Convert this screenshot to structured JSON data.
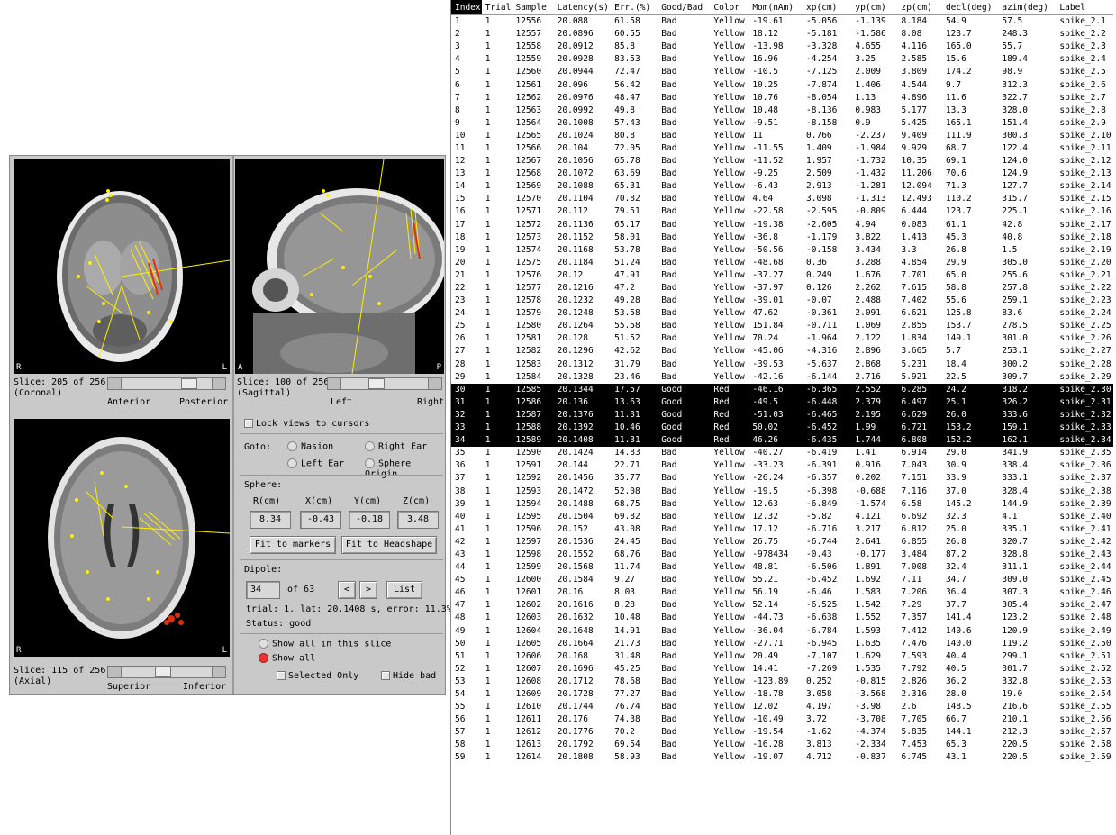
{
  "views": {
    "coronal": {
      "left_label": "R",
      "right_label": "L",
      "slice": "Slice: 205 of 256",
      "view_name": "(Coronal)",
      "scale_left": "Anterior",
      "scale_right": "Posterior",
      "slider_level": 0.8
    },
    "sagittal": {
      "left_label": "A",
      "right_label": "P",
      "slice": "Slice: 100 of 256",
      "view_name": "(Sagittal)",
      "scale_left": "Left",
      "scale_right": "Right",
      "slider_level": 0.39
    },
    "axial": {
      "left_label": "R",
      "right_label": "L",
      "slice": "Slice: 115 of 256",
      "view_name": "(Axial)",
      "scale_left": "Superior",
      "scale_right": "Inferior",
      "slider_level": 0.45
    }
  },
  "controls": {
    "lock_views": "Lock views to cursors",
    "goto_label": "Goto:",
    "goto_options": [
      "Nasion",
      "Right Ear",
      "Left Ear",
      "Sphere Origin"
    ],
    "sphere_label": "Sphere:",
    "sphere_headers": [
      "R(cm)",
      "X(cm)",
      "Y(cm)",
      "Z(cm)"
    ],
    "sphere_values": [
      "8.34",
      "-0.43",
      "-0.18",
      "3.48"
    ],
    "fit_markers": "Fit to markers",
    "fit_headshape": "Fit to Headshape",
    "dipole_label": "Dipole:",
    "dipole_index": "34",
    "dipole_of": "of 63",
    "prev": "<",
    "next": ">",
    "list_button": "List",
    "trial_info": "trial: 1. lat: 20.1408 s, error: 11.3%",
    "status": "Status: good",
    "show_slice": "Show all in this slice",
    "show_all": "Show all",
    "selected_only": "Selected Only",
    "hide_bad": "Hide bad"
  },
  "table": {
    "columns": [
      "Index",
      "Trial",
      "Sample",
      "Latency(s)",
      "Err.(%)",
      "Good/Bad",
      "Color",
      "Mom(nAm)",
      "xp(cm)",
      "yp(cm)",
      "zp(cm)",
      "decl(deg)",
      "azim(deg)",
      "Label"
    ],
    "rows": [
      [
        "1",
        "1",
        "12556",
        "20.088",
        "61.58",
        "Bad",
        "Yellow",
        "-19.61",
        "-5.056",
        "-1.139",
        "8.184",
        "54.9",
        "57.5",
        "spike_2.1"
      ],
      [
        "2",
        "1",
        "12557",
        "20.0896",
        "60.55",
        "Bad",
        "Yellow",
        "18.12",
        "-5.181",
        "-1.586",
        "8.08",
        "123.7",
        "248.3",
        "spike_2.2"
      ],
      [
        "3",
        "1",
        "12558",
        "20.0912",
        "85.8",
        "Bad",
        "Yellow",
        "-13.98",
        "-3.328",
        "4.655",
        "4.116",
        "165.0",
        "55.7",
        "spike_2.3"
      ],
      [
        "4",
        "1",
        "12559",
        "20.0928",
        "83.53",
        "Bad",
        "Yellow",
        "16.96",
        "-4.254",
        "3.25",
        "2.585",
        "15.6",
        "189.4",
        "spike_2.4"
      ],
      [
        "5",
        "1",
        "12560",
        "20.0944",
        "72.47",
        "Bad",
        "Yellow",
        "-10.5",
        "-7.125",
        "2.009",
        "3.809",
        "174.2",
        "98.9",
        "spike_2.5"
      ],
      [
        "6",
        "1",
        "12561",
        "20.096",
        "56.42",
        "Bad",
        "Yellow",
        "10.25",
        "-7.874",
        "1.406",
        "4.544",
        "9.7",
        "312.3",
        "spike_2.6"
      ],
      [
        "7",
        "1",
        "12562",
        "20.0976",
        "48.47",
        "Bad",
        "Yellow",
        "10.76",
        "-8.054",
        "1.13",
        "4.896",
        "11.6",
        "322.7",
        "spike_2.7"
      ],
      [
        "8",
        "1",
        "12563",
        "20.0992",
        "49.8",
        "Bad",
        "Yellow",
        "10.48",
        "-8.136",
        "0.983",
        "5.177",
        "13.3",
        "328.0",
        "spike_2.8"
      ],
      [
        "9",
        "1",
        "12564",
        "20.1008",
        "57.43",
        "Bad",
        "Yellow",
        "-9.51",
        "-8.158",
        "0.9",
        "5.425",
        "165.1",
        "151.4",
        "spike_2.9"
      ],
      [
        "10",
        "1",
        "12565",
        "20.1024",
        "80.8",
        "Bad",
        "Yellow",
        "11",
        "0.766",
        "-2.237",
        "9.409",
        "111.9",
        "300.3",
        "spike_2.10"
      ],
      [
        "11",
        "1",
        "12566",
        "20.104",
        "72.05",
        "Bad",
        "Yellow",
        "-11.55",
        "1.409",
        "-1.984",
        "9.929",
        "68.7",
        "122.4",
        "spike_2.11"
      ],
      [
        "12",
        "1",
        "12567",
        "20.1056",
        "65.78",
        "Bad",
        "Yellow",
        "-11.52",
        "1.957",
        "-1.732",
        "10.35",
        "69.1",
        "124.0",
        "spike_2.12"
      ],
      [
        "13",
        "1",
        "12568",
        "20.1072",
        "63.69",
        "Bad",
        "Yellow",
        "-9.25",
        "2.509",
        "-1.432",
        "11.206",
        "70.6",
        "124.9",
        "spike_2.13"
      ],
      [
        "14",
        "1",
        "12569",
        "20.1088",
        "65.31",
        "Bad",
        "Yellow",
        "-6.43",
        "2.913",
        "-1.281",
        "12.094",
        "71.3",
        "127.7",
        "spike_2.14"
      ],
      [
        "15",
        "1",
        "12570",
        "20.1104",
        "70.82",
        "Bad",
        "Yellow",
        "4.64",
        "3.098",
        "-1.313",
        "12.493",
        "110.2",
        "315.7",
        "spike_2.15"
      ],
      [
        "16",
        "1",
        "12571",
        "20.112",
        "79.51",
        "Bad",
        "Yellow",
        "-22.58",
        "-2.595",
        "-0.809",
        "6.444",
        "123.7",
        "225.1",
        "spike_2.16"
      ],
      [
        "17",
        "1",
        "12572",
        "20.1136",
        "65.17",
        "Bad",
        "Yellow",
        "-19.38",
        "-2.605",
        "4.94",
        "0.083",
        "61.1",
        "42.8",
        "spike_2.17"
      ],
      [
        "18",
        "1",
        "12573",
        "20.1152",
        "58.01",
        "Bad",
        "Yellow",
        "-36.8",
        "-1.179",
        "3.822",
        "1.413",
        "45.3",
        "40.8",
        "spike_2.18"
      ],
      [
        "19",
        "1",
        "12574",
        "20.1168",
        "53.78",
        "Bad",
        "Yellow",
        "-50.56",
        "-0.158",
        "3.434",
        "3.3",
        "26.8",
        "1.5",
        "spike_2.19"
      ],
      [
        "20",
        "1",
        "12575",
        "20.1184",
        "51.24",
        "Bad",
        "Yellow",
        "-48.68",
        "0.36",
        "3.288",
        "4.854",
        "29.9",
        "305.0",
        "spike_2.20"
      ],
      [
        "21",
        "1",
        "12576",
        "20.12",
        "47.91",
        "Bad",
        "Yellow",
        "-37.27",
        "0.249",
        "1.676",
        "7.701",
        "65.0",
        "255.6",
        "spike_2.21"
      ],
      [
        "22",
        "1",
        "12577",
        "20.1216",
        "47.2",
        "Bad",
        "Yellow",
        "-37.97",
        "0.126",
        "2.262",
        "7.615",
        "58.8",
        "257.8",
        "spike_2.22"
      ],
      [
        "23",
        "1",
        "12578",
        "20.1232",
        "49.28",
        "Bad",
        "Yellow",
        "-39.01",
        "-0.07",
        "2.488",
        "7.402",
        "55.6",
        "259.1",
        "spike_2.23"
      ],
      [
        "24",
        "1",
        "12579",
        "20.1248",
        "53.58",
        "Bad",
        "Yellow",
        "47.62",
        "-0.361",
        "2.091",
        "6.621",
        "125.8",
        "83.6",
        "spike_2.24"
      ],
      [
        "25",
        "1",
        "12580",
        "20.1264",
        "55.58",
        "Bad",
        "Yellow",
        "151.84",
        "-0.711",
        "1.069",
        "2.855",
        "153.7",
        "278.5",
        "spike_2.25"
      ],
      [
        "26",
        "1",
        "12581",
        "20.128",
        "51.52",
        "Bad",
        "Yellow",
        "70.24",
        "-1.964",
        "2.122",
        "1.834",
        "149.1",
        "301.0",
        "spike_2.26"
      ],
      [
        "27",
        "1",
        "12582",
        "20.1296",
        "42.62",
        "Bad",
        "Yellow",
        "-45.06",
        "-4.316",
        "2.896",
        "3.665",
        "5.7",
        "253.1",
        "spike_2.27"
      ],
      [
        "28",
        "1",
        "12583",
        "20.1312",
        "31.79",
        "Bad",
        "Yellow",
        "-39.53",
        "-5.637",
        "2.868",
        "5.231",
        "18.4",
        "300.2",
        "spike_2.28"
      ],
      [
        "29",
        "1",
        "12584",
        "20.1328",
        "23.46",
        "Bad",
        "Yellow",
        "-42.16",
        "-6.144",
        "2.716",
        "5.921",
        "22.5",
        "309.7",
        "spike_2.29"
      ],
      [
        "30",
        "1",
        "12585",
        "20.1344",
        "17.57",
        "Good",
        "Red",
        "-46.16",
        "-6.365",
        "2.552",
        "6.285",
        "24.2",
        "318.2",
        "spike_2.30"
      ],
      [
        "31",
        "1",
        "12586",
        "20.136",
        "13.63",
        "Good",
        "Red",
        "-49.5",
        "-6.448",
        "2.379",
        "6.497",
        "25.1",
        "326.2",
        "spike_2.31"
      ],
      [
        "32",
        "1",
        "12587",
        "20.1376",
        "11.31",
        "Good",
        "Red",
        "-51.03",
        "-6.465",
        "2.195",
        "6.629",
        "26.0",
        "333.6",
        "spike_2.32"
      ],
      [
        "33",
        "1",
        "12588",
        "20.1392",
        "10.46",
        "Good",
        "Red",
        "50.02",
        "-6.452",
        "1.99",
        "6.721",
        "153.2",
        "159.1",
        "spike_2.33"
      ],
      [
        "34",
        "1",
        "12589",
        "20.1408",
        "11.31",
        "Good",
        "Red",
        "46.26",
        "-6.435",
        "1.744",
        "6.808",
        "152.2",
        "162.1",
        "spike_2.34"
      ],
      [
        "35",
        "1",
        "12590",
        "20.1424",
        "14.83",
        "Bad",
        "Yellow",
        "-40.27",
        "-6.419",
        "1.41",
        "6.914",
        "29.0",
        "341.9",
        "spike_2.35"
      ],
      [
        "36",
        "1",
        "12591",
        "20.144",
        "22.71",
        "Bad",
        "Yellow",
        "-33.23",
        "-6.391",
        "0.916",
        "7.043",
        "30.9",
        "338.4",
        "spike_2.36"
      ],
      [
        "37",
        "1",
        "12592",
        "20.1456",
        "35.77",
        "Bad",
        "Yellow",
        "-26.24",
        "-6.357",
        "0.202",
        "7.151",
        "33.9",
        "333.1",
        "spike_2.37"
      ],
      [
        "38",
        "1",
        "12593",
        "20.1472",
        "52.08",
        "Bad",
        "Yellow",
        "-19.5",
        "-6.398",
        "-0.688",
        "7.116",
        "37.0",
        "328.4",
        "spike_2.38"
      ],
      [
        "39",
        "1",
        "12594",
        "20.1488",
        "68.75",
        "Bad",
        "Yellow",
        "12.63",
        "-6.849",
        "-1.574",
        "6.58",
        "145.2",
        "144.9",
        "spike_2.39"
      ],
      [
        "40",
        "1",
        "12595",
        "20.1504",
        "69.82",
        "Bad",
        "Yellow",
        "12.32",
        "-5.82",
        "4.121",
        "6.692",
        "32.3",
        "4.1",
        "spike_2.40"
      ],
      [
        "41",
        "1",
        "12596",
        "20.152",
        "43.08",
        "Bad",
        "Yellow",
        "17.12",
        "-6.716",
        "3.217",
        "6.812",
        "25.0",
        "335.1",
        "spike_2.41"
      ],
      [
        "42",
        "1",
        "12597",
        "20.1536",
        "24.45",
        "Bad",
        "Yellow",
        "26.75",
        "-6.744",
        "2.641",
        "6.855",
        "26.8",
        "320.7",
        "spike_2.42"
      ],
      [
        "43",
        "1",
        "12598",
        "20.1552",
        "68.76",
        "Bad",
        "Yellow",
        "-978434",
        "-0.43",
        "-0.177",
        "3.484",
        "87.2",
        "328.8",
        "spike_2.43"
      ],
      [
        "44",
        "1",
        "12599",
        "20.1568",
        "11.74",
        "Bad",
        "Yellow",
        "48.81",
        "-6.506",
        "1.891",
        "7.008",
        "32.4",
        "311.1",
        "spike_2.44"
      ],
      [
        "45",
        "1",
        "12600",
        "20.1584",
        "9.27",
        "Bad",
        "Yellow",
        "55.21",
        "-6.452",
        "1.692",
        "7.11",
        "34.7",
        "309.0",
        "spike_2.45"
      ],
      [
        "46",
        "1",
        "12601",
        "20.16",
        "8.03",
        "Bad",
        "Yellow",
        "56.19",
        "-6.46",
        "1.583",
        "7.206",
        "36.4",
        "307.3",
        "spike_2.46"
      ],
      [
        "47",
        "1",
        "12602",
        "20.1616",
        "8.28",
        "Bad",
        "Yellow",
        "52.14",
        "-6.525",
        "1.542",
        "7.29",
        "37.7",
        "305.4",
        "spike_2.47"
      ],
      [
        "48",
        "1",
        "12603",
        "20.1632",
        "10.48",
        "Bad",
        "Yellow",
        "-44.73",
        "-6.638",
        "1.552",
        "7.357",
        "141.4",
        "123.2",
        "spike_2.48"
      ],
      [
        "49",
        "1",
        "12604",
        "20.1648",
        "14.91",
        "Bad",
        "Yellow",
        "-36.04",
        "-6.784",
        "1.593",
        "7.412",
        "140.6",
        "120.9",
        "spike_2.49"
      ],
      [
        "50",
        "1",
        "12605",
        "20.1664",
        "21.73",
        "Bad",
        "Yellow",
        "-27.71",
        "-6.945",
        "1.635",
        "7.476",
        "140.0",
        "119.2",
        "spike_2.50"
      ],
      [
        "51",
        "1",
        "12606",
        "20.168",
        "31.48",
        "Bad",
        "Yellow",
        "20.49",
        "-7.107",
        "1.629",
        "7.593",
        "40.4",
        "299.1",
        "spike_2.51"
      ],
      [
        "52",
        "1",
        "12607",
        "20.1696",
        "45.25",
        "Bad",
        "Yellow",
        "14.41",
        "-7.269",
        "1.535",
        "7.792",
        "40.5",
        "301.7",
        "spike_2.52"
      ],
      [
        "53",
        "1",
        "12608",
        "20.1712",
        "78.68",
        "Bad",
        "Yellow",
        "-123.89",
        "0.252",
        "-0.815",
        "2.826",
        "36.2",
        "332.8",
        "spike_2.53"
      ],
      [
        "54",
        "1",
        "12609",
        "20.1728",
        "77.27",
        "Bad",
        "Yellow",
        "-18.78",
        "3.058",
        "-3.568",
        "2.316",
        "28.0",
        "19.0",
        "spike_2.54"
      ],
      [
        "55",
        "1",
        "12610",
        "20.1744",
        "76.74",
        "Bad",
        "Yellow",
        "12.02",
        "4.197",
        "-3.98",
        "2.6",
        "148.5",
        "216.6",
        "spike_2.55"
      ],
      [
        "56",
        "1",
        "12611",
        "20.176",
        "74.38",
        "Bad",
        "Yellow",
        "-10.49",
        "3.72",
        "-3.708",
        "7.705",
        "66.7",
        "210.1",
        "spike_2.56"
      ],
      [
        "57",
        "1",
        "12612",
        "20.1776",
        "70.2",
        "Bad",
        "Yellow",
        "-19.54",
        "-1.62",
        "-4.374",
        "5.835",
        "144.1",
        "212.3",
        "spike_2.57"
      ],
      [
        "58",
        "1",
        "12613",
        "20.1792",
        "69.54",
        "Bad",
        "Yellow",
        "-16.28",
        "3.813",
        "-2.334",
        "7.453",
        "65.3",
        "220.5",
        "spike_2.58"
      ],
      [
        "59",
        "1",
        "12614",
        "20.1808",
        "58.93",
        "Bad",
        "Yellow",
        "-19.07",
        "4.712",
        "-0.837",
        "6.745",
        "43.1",
        "220.5",
        "spike_2.59"
      ]
    ]
  }
}
